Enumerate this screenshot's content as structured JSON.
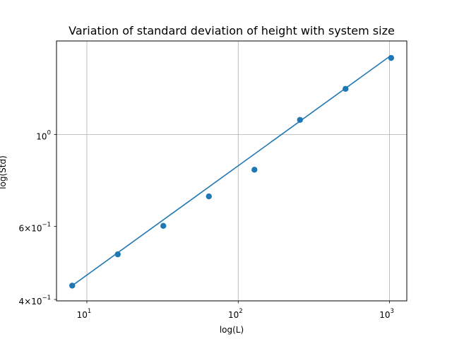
{
  "chart_data": {
    "type": "scatter",
    "title": "Variation of standard deviation of height with system size",
    "xlabel": "log(L)",
    "ylabel": "log(Std)",
    "x_scale": "log",
    "y_scale": "log",
    "xlim": [
      6.3,
      1300
    ],
    "ylim": [
      0.397,
      1.68
    ],
    "grid": true,
    "series": [
      {
        "kind": "points",
        "color": "#1f77b4",
        "x": [
          8,
          16,
          32,
          64,
          128,
          256,
          512,
          1024
        ],
        "y": [
          0.432,
          0.514,
          0.602,
          0.709,
          0.822,
          1.084,
          1.288,
          1.529
        ]
      },
      {
        "kind": "fit-line",
        "color": "#1f77b4",
        "x": [
          8,
          1024
        ],
        "y": [
          0.432,
          1.551
        ]
      }
    ],
    "x_ticks": [
      {
        "value": 10,
        "base": "10",
        "exp": "1"
      },
      {
        "value": 100,
        "base": "10",
        "exp": "2"
      },
      {
        "value": 1000,
        "base": "10",
        "exp": "3"
      }
    ],
    "y_ticks": [
      {
        "value": 0.4,
        "mantissa": "4",
        "base": "10",
        "exp": "−1",
        "grid": false
      },
      {
        "value": 0.6,
        "mantissa": "6",
        "base": "10",
        "exp": "−1",
        "grid": false
      },
      {
        "value": 1.0,
        "mantissa": "",
        "base": "10",
        "exp": "0",
        "grid": true
      }
    ]
  }
}
